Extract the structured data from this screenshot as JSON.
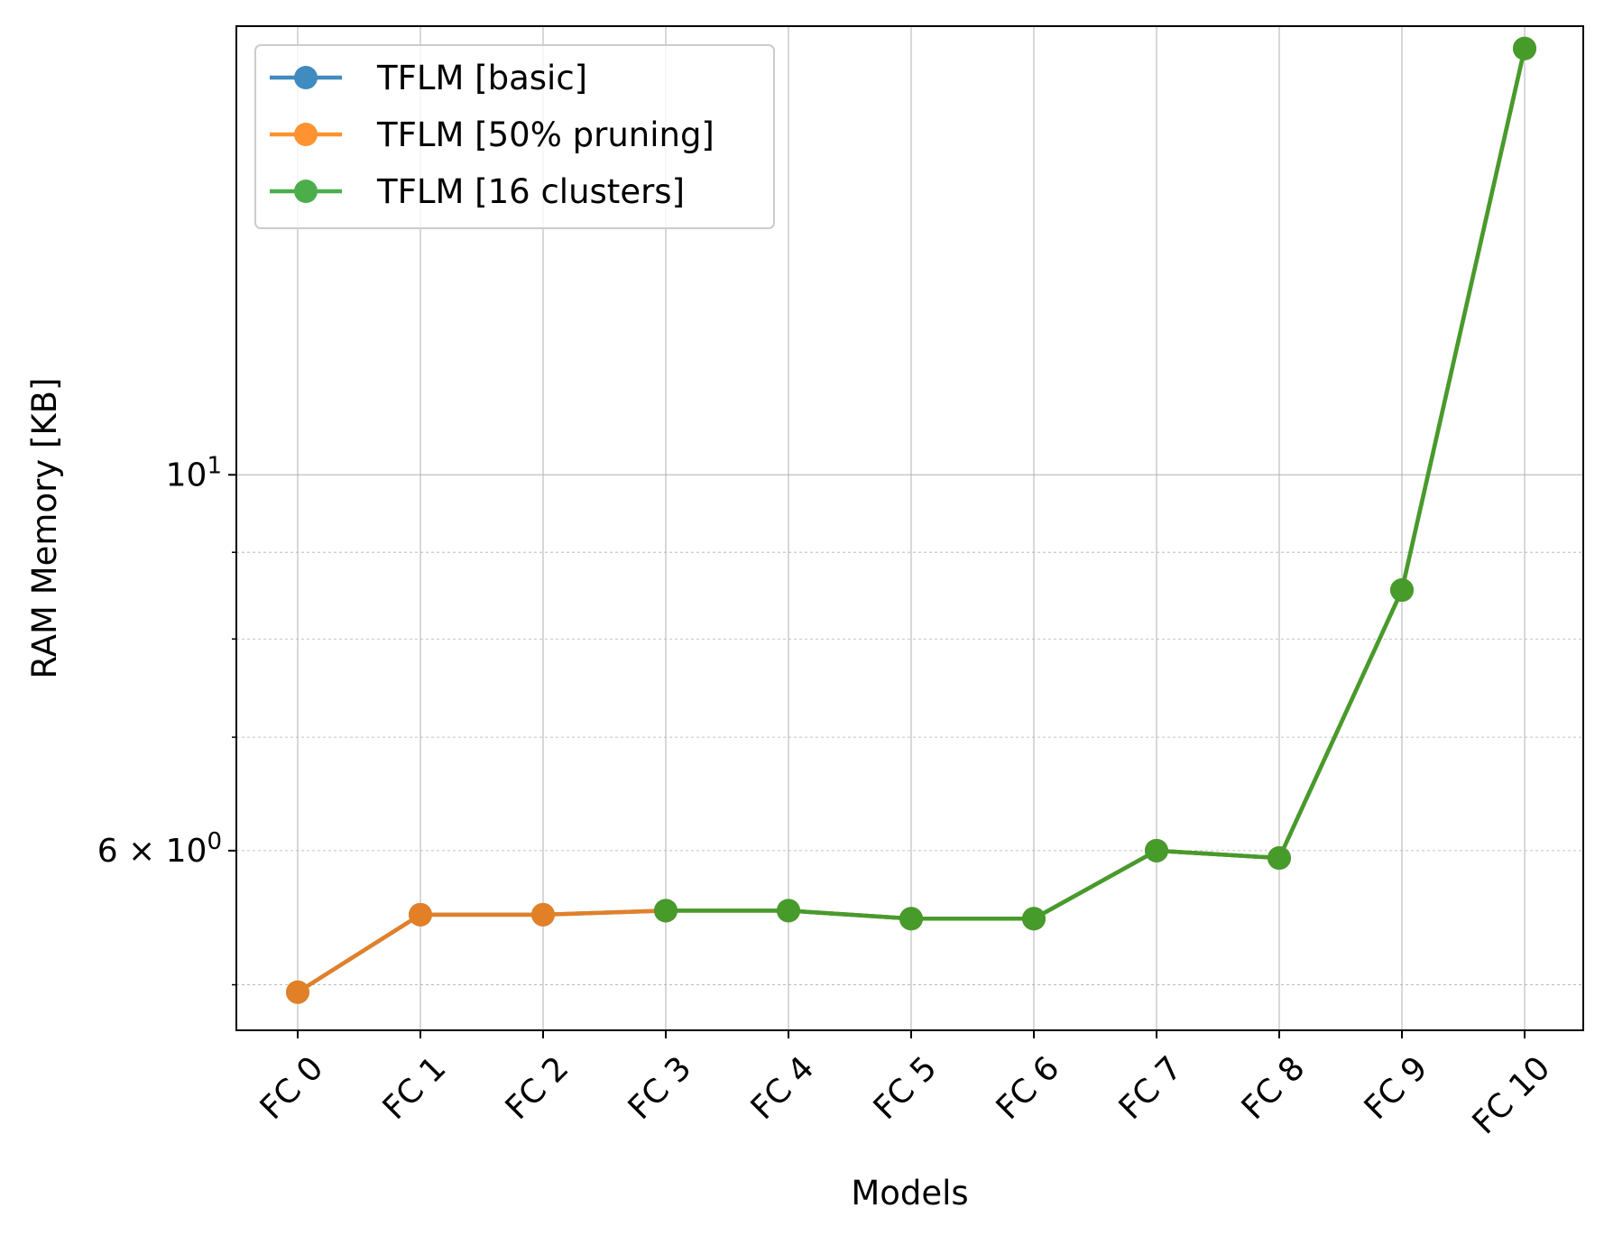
{
  "chart_data": {
    "type": "line",
    "xlabel": "Models",
    "ylabel": "RAM Memory [KB]",
    "yscale": "log",
    "ylim": [
      4.7,
      18.4
    ],
    "grid": {
      "major": true,
      "minor": true
    },
    "legend_position": "top-left",
    "categories": [
      "FC 0",
      "FC 1",
      "FC 2",
      "FC 3",
      "FC 4",
      "FC 5",
      "FC 6",
      "FC 7",
      "FC 8",
      "FC 9",
      "FC 10"
    ],
    "y_ticks": [
      {
        "value": 10,
        "label_base": "10",
        "label_exp": "1"
      },
      {
        "value": 6,
        "label_base": "6 × 10",
        "label_exp": "0"
      }
    ],
    "series": [
      {
        "name": "TFLM [basic]",
        "color": "#1f77b4",
        "values": [
          4.95,
          5.5,
          5.5,
          5.53,
          5.53,
          5.47,
          5.47,
          6.0,
          5.94,
          8.55,
          17.85
        ]
      },
      {
        "name": "TFLM [50% pruning]",
        "color": "#ff7f0e",
        "values": [
          4.95,
          5.5,
          5.5,
          5.53,
          5.53,
          5.47,
          5.47,
          6.0,
          5.94,
          8.55,
          17.85
        ]
      },
      {
        "name": "TFLM [16 clusters]",
        "color": "#2ca02c",
        "values": [
          null,
          null,
          null,
          5.53,
          5.53,
          5.47,
          5.47,
          6.0,
          5.94,
          8.55,
          17.85
        ]
      }
    ]
  }
}
